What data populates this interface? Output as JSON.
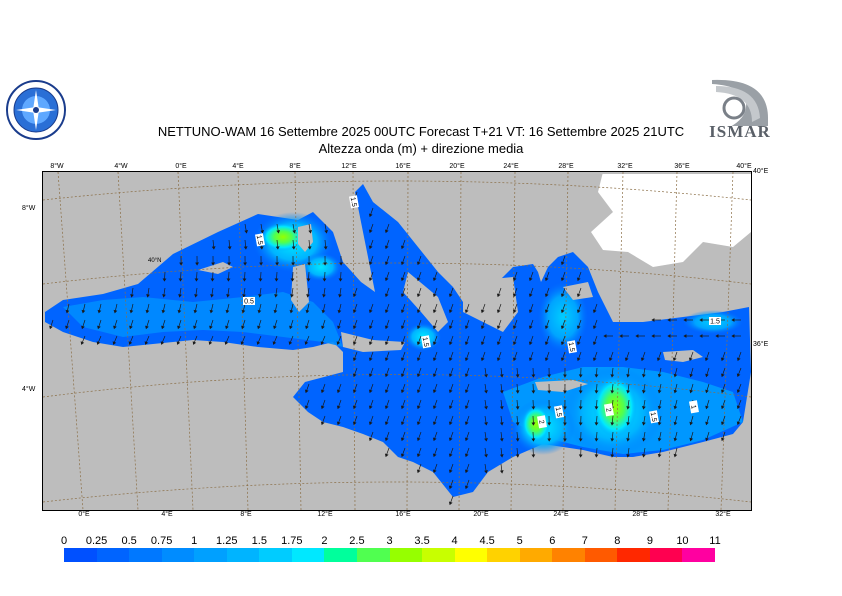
{
  "title_line1": "NETTUNO-WAM  16 Settembre 2025 00UTC Forecast T+21 VT: 16 Settembre 2025 21UTC",
  "title_line2": "Altezza onda (m) + direzione media",
  "logos": {
    "left": {
      "icon": "meteo-service-compass-logo"
    },
    "right": {
      "icon": "ismar-logo",
      "text": "ISMAR"
    }
  },
  "top_ticks": [
    "8°W",
    "4°W",
    "0°E",
    "4°E",
    "8°E",
    "12°E",
    "16°E",
    "20°E",
    "24°E",
    "28°E",
    "32°E",
    "36°E",
    "40°E"
  ],
  "bottom_ticks": [
    "0°E",
    "4°E",
    "8°E",
    "12°E",
    "16°E",
    "20°E",
    "24°E",
    "28°E",
    "32°E"
  ],
  "left_ticks": [
    "8°W",
    "4°W"
  ],
  "right_ticks": [
    "40°E",
    "36°E"
  ],
  "inner_label": "40°N",
  "contour_labels": [
    "1.5",
    "0.5",
    "1.5",
    "1.5",
    "2",
    "1.5",
    "2",
    "1.5",
    "1",
    "1.5",
    "1.5"
  ],
  "colorbar": {
    "labels": [
      "0",
      "0.25",
      "0.5",
      "0.75",
      "1",
      "1.25",
      "1.5",
      "1.75",
      "2",
      "2.5",
      "3",
      "3.5",
      "4",
      "4.5",
      "5",
      "6",
      "7",
      "8",
      "9",
      "10",
      "11"
    ],
    "colors": [
      "#0050ff",
      "#0064ff",
      "#0078ff",
      "#008cff",
      "#00a0ff",
      "#00b4ff",
      "#00ccff",
      "#00e8ff",
      "#00ff9c",
      "#50ff50",
      "#96ff00",
      "#c8ff00",
      "#ffff00",
      "#ffd200",
      "#ffaa00",
      "#ff8200",
      "#ff5a00",
      "#ff2800",
      "#ff0050",
      "#ff00a0"
    ]
  },
  "colors": {
    "land": "#bdbdbd",
    "snow": "#ffffff",
    "sea_base": "#0064ff"
  }
}
